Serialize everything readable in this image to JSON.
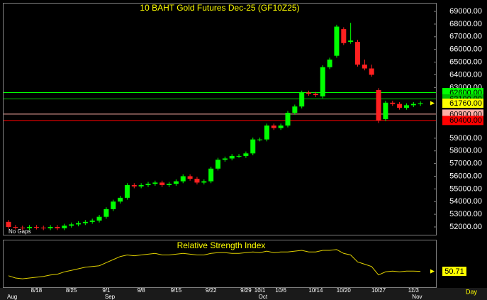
{
  "chart_data": [
    {
      "type": "candlestick",
      "title": "10 BAHT Gold Futures Dec-25 (GF10Z25)",
      "annotation": "No Gaps",
      "period": "Day",
      "categories": [
        null,
        null,
        null,
        null,
        "8/18",
        null,
        null,
        null,
        null,
        "8/25",
        null,
        null,
        null,
        null,
        "9/1",
        null,
        null,
        null,
        null,
        "9/8",
        null,
        null,
        null,
        null,
        "9/15",
        null,
        null,
        null,
        null,
        "9/22",
        null,
        null,
        null,
        null,
        "9/29",
        null,
        "10/1",
        null,
        null,
        "10/6",
        null,
        null,
        null,
        null,
        "10/14",
        null,
        null,
        null,
        "10/20",
        null,
        null,
        null,
        null,
        "10/27",
        null,
        null,
        null,
        null,
        "11/3",
        null
      ],
      "month_labels": [
        "Aug",
        "Sep",
        "Oct",
        "Nov"
      ],
      "month_starts": [
        0,
        14,
        36,
        58
      ],
      "open": [
        52400,
        52000,
        51950,
        51900,
        52000,
        51950,
        51900,
        52000,
        51900,
        52100,
        52200,
        52300,
        52400,
        52500,
        52800,
        53400,
        54000,
        54300,
        55300,
        55200,
        55300,
        55400,
        55500,
        55300,
        55400,
        55600,
        56000,
        55800,
        55500,
        55600,
        56600,
        57300,
        57400,
        57600,
        57600,
        57800,
        58900,
        58900,
        60000,
        59800,
        60000,
        61000,
        61500,
        62600,
        62500,
        62300,
        64600,
        65500,
        67600,
        66600,
        66600,
        64800,
        64500,
        62800,
        60500,
        61800,
        61700,
        61400,
        61600,
        61700
      ],
      "high": [
        52550,
        52150,
        52100,
        52150,
        52150,
        52100,
        52150,
        52150,
        52250,
        52350,
        52450,
        52550,
        52650,
        52950,
        53550,
        54150,
        54450,
        55450,
        55450,
        55450,
        55550,
        55650,
        55650,
        55550,
        55750,
        56150,
        56150,
        55950,
        55750,
        56750,
        57450,
        57550,
        57750,
        57750,
        57950,
        59050,
        59050,
        60150,
        60150,
        60150,
        61150,
        61650,
        62750,
        62750,
        62650,
        64750,
        65350,
        67950,
        67750,
        68100,
        66750,
        65200,
        64800,
        62950,
        61950,
        61950,
        61850,
        61750,
        61850,
        61900
      ],
      "low": [
        51850,
        51800,
        51750,
        51750,
        51800,
        51750,
        51750,
        51750,
        51750,
        51950,
        52050,
        52150,
        52250,
        52350,
        52650,
        53250,
        53850,
        54150,
        55050,
        55050,
        55150,
        55250,
        55150,
        55150,
        55250,
        55450,
        55650,
        55350,
        55350,
        55450,
        56450,
        57150,
        57250,
        57450,
        57450,
        57650,
        58750,
        58750,
        59650,
        59650,
        59850,
        60850,
        61350,
        62350,
        62250,
        62150,
        64450,
        65350,
        66350,
        66450,
        64650,
        64350,
        63850,
        60200,
        60350,
        61550,
        61250,
        61250,
        61450,
        61550
      ],
      "close": [
        52000,
        51950,
        51900,
        52000,
        51950,
        51900,
        52000,
        51900,
        52100,
        52200,
        52300,
        52400,
        52500,
        52800,
        53400,
        54000,
        54300,
        55300,
        55200,
        55300,
        55400,
        55500,
        55300,
        55400,
        55600,
        56000,
        55800,
        55500,
        55600,
        56600,
        57300,
        57400,
        57600,
        57600,
        57800,
        58900,
        58900,
        60000,
        59800,
        60000,
        61000,
        61500,
        62600,
        62500,
        62400,
        64600,
        65200,
        67800,
        66500,
        66700,
        64800,
        64500,
        64000,
        60400,
        61800,
        61700,
        61400,
        61600,
        61700,
        61760
      ],
      "up_color": "#00ff00",
      "down_color": "#ff2020",
      "ylim": [
        51440,
        69620
      ],
      "yticks": [
        {
          "value": 52000,
          "label": "52000.00"
        },
        {
          "value": 53000,
          "label": "53000.00"
        },
        {
          "value": 54000,
          "label": "54000.00"
        },
        {
          "value": 55000,
          "label": "55000.00"
        },
        {
          "value": 56000,
          "label": "56000.00"
        },
        {
          "value": 57000,
          "label": "57000.00"
        },
        {
          "value": 58000,
          "label": "58000.00"
        },
        {
          "value": 59000,
          "label": "59000.00"
        },
        {
          "value": 63000,
          "label": "63000.00"
        },
        {
          "value": 64000,
          "label": "64000.00"
        },
        {
          "value": 65000,
          "label": "65000.00"
        },
        {
          "value": 66000,
          "label": "66000.00"
        },
        {
          "value": 67000,
          "label": "67000.00"
        },
        {
          "value": 68000,
          "label": "68000.00"
        },
        {
          "value": 69000,
          "label": "69000.00"
        }
      ],
      "levels": [
        {
          "value": 62600,
          "label": "62600.00",
          "color": "#00ff00",
          "style": "line"
        },
        {
          "value": 62100,
          "label": "62100.00",
          "color": "#00c000",
          "style": "line"
        },
        {
          "value": 61760,
          "label": "61760.00",
          "color": "#ffff00",
          "style": "marker"
        },
        {
          "value": 60900,
          "label": "60900.00",
          "color": "#ffb0a8",
          "style": "line"
        },
        {
          "value": 60400,
          "label": "60400.00",
          "color": "#ff0000",
          "style": "line"
        }
      ]
    },
    {
      "type": "line",
      "title": "Relative Strength Index",
      "color": "#e0d000",
      "label_color": "#ffff00",
      "values": [
        45,
        42,
        41,
        42,
        43,
        44,
        46,
        47,
        50,
        52,
        54,
        56,
        57,
        58,
        62,
        66,
        70,
        72,
        71,
        72,
        73,
        74,
        72,
        72,
        73,
        74,
        73,
        72,
        72,
        74,
        75,
        75,
        74,
        74,
        75,
        76,
        75,
        77,
        75,
        76,
        76,
        77,
        78,
        76,
        76,
        78,
        78,
        79,
        74,
        72,
        63,
        60,
        57,
        46,
        50,
        51,
        50,
        51,
        51,
        50.71
      ],
      "ylim": [
        30,
        90
      ]
    }
  ]
}
